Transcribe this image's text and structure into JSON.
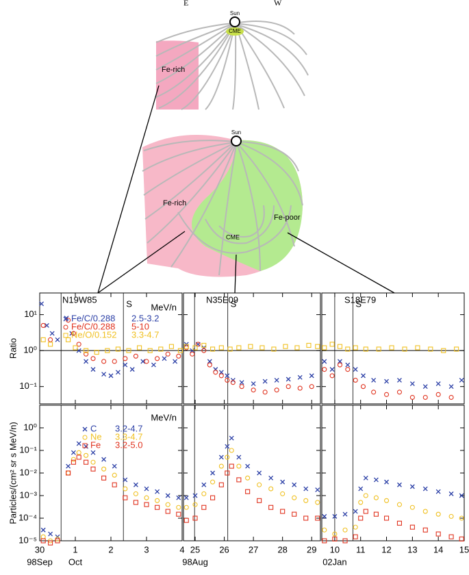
{
  "diagram": {
    "labels": {
      "e": "E",
      "w": "W",
      "sun_top": "Sun",
      "cme_top": "CME",
      "ferich_top": "Fe-rich",
      "sun_bottom": "Sun",
      "ferich_bottom": "Fe-rich",
      "fepoor_bottom": "Fe-poor",
      "cme_bottom": "CME"
    }
  },
  "chart_data": [
    {
      "type": "scatter",
      "log_y": true,
      "ylim": [
        0.033,
        40
      ],
      "xlim": [
        0,
        4
      ],
      "yticks": [
        {
          "value": 0.1,
          "label": "10⁻¹"
        },
        {
          "value": 1,
          "label": "10⁰"
        },
        {
          "value": 10,
          "label": "10¹"
        }
      ],
      "show_ytick_labels": true,
      "xticks": [
        0,
        1,
        2,
        3,
        4
      ],
      "show_xtick_labels": false,
      "ylabel": "Ratio",
      "annotation": "N19W85",
      "hline": 1,
      "vlines": [
        {
          "value": 0.6
        },
        {
          "value": 2.35,
          "label": "S"
        }
      ],
      "legend_title": "MeV/n",
      "series": [
        {
          "name": "Fe/C/0.288",
          "energy": "2.5-3.2",
          "color": "#2b3fa6",
          "marker": "x",
          "x": [
            0.05,
            0.2,
            0.35,
            0.5,
            0.75,
            0.9,
            1.1,
            1.3,
            1.5,
            1.8,
            2.0,
            2.2,
            2.4,
            2.6,
            2.9,
            3.2,
            3.5,
            3.8
          ],
          "values": [
            20,
            5,
            3,
            2,
            8,
            3,
            1,
            0.5,
            0.3,
            0.22,
            0.2,
            0.25,
            0.4,
            0.3,
            0.5,
            0.4,
            0.6,
            0.5
          ]
        },
        {
          "name": "Fe/C/0.288",
          "energy": "5-10",
          "color": "#e0321e",
          "marker": "o",
          "x": [
            0.1,
            0.3,
            0.8,
            0.95,
            1.1,
            1.3,
            1.5,
            1.8,
            2.1,
            2.4,
            2.7,
            3.0,
            3.3,
            3.6,
            3.9
          ],
          "values": [
            5,
            2,
            7,
            3,
            1.5,
            0.8,
            0.6,
            0.5,
            0.5,
            0.6,
            0.7,
            0.5,
            0.6,
            0.8,
            0.7
          ]
        },
        {
          "name": "Ne/O/0.152",
          "energy": "3.3-4.7",
          "color": "#f0c020",
          "marker": "s",
          "x": [
            0.1,
            0.3,
            0.8,
            1.0,
            1.3,
            1.6,
            1.9,
            2.2,
            2.5,
            2.8,
            3.1,
            3.4,
            3.7,
            3.95
          ],
          "values": [
            2,
            1.5,
            2,
            1.2,
            1.0,
            0.9,
            1.0,
            1.1,
            1.0,
            1.2,
            1.0,
            1.1,
            1.3,
            1.0
          ]
        }
      ]
    },
    {
      "type": "scatter",
      "log_y": true,
      "ylim": [
        0.033,
        40
      ],
      "xlim": [
        24.6,
        29.3
      ],
      "yticks": [
        0.1,
        1,
        10
      ],
      "show_ytick_labels": false,
      "xticks": [
        25,
        26,
        27,
        28,
        29
      ],
      "show_xtick_labels": false,
      "annotation": "N35E09",
      "hline": 1,
      "vlines": [
        {
          "value": 24.98
        },
        {
          "value": 26.12,
          "label": "S"
        }
      ],
      "series": [
        {
          "color": "#2b3fa6",
          "marker": "x",
          "x": [
            24.7,
            24.9,
            25.1,
            25.3,
            25.5,
            25.7,
            25.9,
            26.1,
            26.3,
            26.6,
            27.0,
            27.4,
            27.8,
            28.2,
            28.6,
            29.0
          ],
          "values": [
            1.5,
            1.0,
            1.5,
            1.2,
            0.5,
            0.3,
            0.25,
            0.2,
            0.15,
            0.13,
            0.12,
            0.14,
            0.15,
            0.16,
            0.18,
            0.2
          ]
        },
        {
          "color": "#e0321e",
          "marker": "o",
          "x": [
            24.7,
            24.9,
            25.1,
            25.3,
            25.5,
            25.7,
            25.9,
            26.1,
            26.3,
            26.6,
            27.0,
            27.4,
            27.8,
            28.2,
            28.6,
            29.0
          ],
          "values": [
            1.2,
            0.8,
            1.5,
            1.0,
            0.4,
            0.25,
            0.2,
            0.15,
            0.13,
            0.1,
            0.08,
            0.07,
            0.08,
            0.1,
            0.09,
            0.1
          ]
        },
        {
          "color": "#f0c020",
          "marker": "s",
          "x": [
            24.7,
            25.0,
            25.3,
            25.6,
            25.9,
            26.2,
            26.5,
            26.9,
            27.3,
            27.7,
            28.1,
            28.5,
            28.9,
            29.2
          ],
          "values": [
            1.3,
            1.2,
            1.4,
            1.1,
            1.2,
            1.1,
            1.2,
            1.3,
            1.2,
            1.1,
            1.3,
            1.2,
            1.4,
            1.3
          ]
        }
      ]
    },
    {
      "type": "scatter",
      "log_y": true,
      "ylim": [
        0.033,
        40
      ],
      "xlim": [
        9.5,
        15
      ],
      "yticks": [
        0.1,
        1,
        10
      ],
      "show_ytick_labels": false,
      "xticks": [
        10,
        11,
        12,
        13,
        14,
        15
      ],
      "show_xtick_labels": false,
      "annotation": "S18E79",
      "hline": 1,
      "vlines": [
        {
          "value": 10.0
        },
        {
          "value": 10.7,
          "label": "S"
        }
      ],
      "series": [
        {
          "color": "#2b3fa6",
          "marker": "x",
          "x": [
            9.6,
            9.9,
            10.2,
            10.5,
            10.8,
            11.1,
            11.5,
            12.0,
            12.5,
            13.0,
            13.5,
            14.0,
            14.5,
            14.9
          ],
          "values": [
            0.5,
            0.3,
            0.5,
            0.4,
            0.3,
            0.2,
            0.15,
            0.14,
            0.15,
            0.12,
            0.1,
            0.12,
            0.1,
            0.15
          ]
        },
        {
          "color": "#e0321e",
          "marker": "o",
          "x": [
            9.6,
            9.9,
            10.2,
            10.5,
            10.8,
            11.1,
            11.5,
            12.0,
            12.5,
            13.0,
            13.5,
            14.0,
            14.5
          ],
          "values": [
            0.3,
            0.2,
            0.4,
            0.3,
            0.15,
            0.1,
            0.07,
            0.06,
            0.07,
            0.05,
            0.05,
            0.06,
            0.05
          ]
        },
        {
          "color": "#f0c020",
          "marker": "s",
          "x": [
            9.6,
            9.9,
            10.2,
            10.5,
            10.8,
            11.2,
            11.7,
            12.2,
            12.7,
            13.2,
            13.7,
            14.2,
            14.7
          ],
          "values": [
            1.2,
            1.5,
            1.3,
            1.1,
            1.2,
            1.1,
            1.1,
            1.2,
            1.1,
            1.2,
            1.1,
            1.0,
            1.1
          ]
        }
      ]
    },
    {
      "type": "scatter",
      "log_y": true,
      "ylim": [
        1e-05,
        10
      ],
      "xlim": [
        0,
        4
      ],
      "yticks": [
        {
          "value": 1e-05,
          "label": "10⁻⁵"
        },
        {
          "value": 0.0001,
          "label": "10⁻⁴"
        },
        {
          "value": 0.001,
          "label": "10⁻³"
        },
        {
          "value": 0.01,
          "label": "10⁻²"
        },
        {
          "value": 0.1,
          "label": "10⁻¹"
        },
        {
          "value": 1,
          "label": "10⁰"
        }
      ],
      "show_ytick_labels": true,
      "xticks": [
        {
          "value": 0,
          "label": "30"
        },
        1,
        2,
        3,
        4
      ],
      "show_xtick_labels": true,
      "date_labels": [
        {
          "value": 0,
          "label": "98Sep"
        },
        {
          "value": 1,
          "label": "Oct"
        }
      ],
      "ylabel": "Particles/(cm² sr s MeV/n)",
      "vlines": [
        {
          "value": 0.6
        },
        {
          "value": 2.35
        }
      ],
      "legend_title": "MeV/n",
      "series": [
        {
          "name": "C",
          "energy": "3.2-4.7",
          "color": "#2b3fa6",
          "marker": "x",
          "x": [
            0.1,
            0.3,
            0.5,
            0.8,
            0.95,
            1.1,
            1.3,
            1.5,
            1.8,
            2.1,
            2.4,
            2.7,
            3.0,
            3.3,
            3.6,
            3.9
          ],
          "values": [
            3e-05,
            2e-05,
            1.5e-05,
            0.02,
            0.08,
            0.2,
            0.15,
            0.08,
            0.04,
            0.02,
            0.005,
            0.003,
            0.002,
            0.0015,
            0.001,
            0.0008
          ]
        },
        {
          "name": "Ne",
          "energy": "3.3-4.7",
          "color": "#f0c020",
          "marker": "o",
          "x": [
            0.1,
            0.3,
            0.5,
            0.8,
            0.95,
            1.1,
            1.3,
            1.5,
            1.8,
            2.1,
            2.4,
            2.7,
            3.0,
            3.3,
            3.6,
            3.9
          ],
          "values": [
            1.5e-05,
            1e-05,
            1.2e-05,
            0.01,
            0.04,
            0.08,
            0.06,
            0.03,
            0.015,
            0.008,
            0.002,
            0.0012,
            0.0008,
            0.0006,
            0.0004,
            0.0003
          ]
        },
        {
          "name": "Fe",
          "energy": "3.2-5.0",
          "color": "#e0321e",
          "marker": "s",
          "x": [
            0.1,
            0.3,
            0.5,
            0.8,
            0.95,
            1.1,
            1.3,
            1.5,
            1.8,
            2.1,
            2.4,
            2.7,
            3.0,
            3.3,
            3.6,
            3.9
          ],
          "values": [
            1e-05,
            8e-06,
            1e-05,
            0.01,
            0.03,
            0.05,
            0.03,
            0.015,
            0.006,
            0.003,
            0.0008,
            0.0005,
            0.0004,
            0.0003,
            0.0002,
            0.00015
          ]
        }
      ]
    },
    {
      "type": "scatter",
      "log_y": true,
      "ylim": [
        1e-05,
        10
      ],
      "xlim": [
        24.6,
        29.3
      ],
      "yticks": [
        1e-05,
        0.0001,
        0.001,
        0.01,
        0.1,
        1
      ],
      "show_ytick_labels": false,
      "xticks": [
        25,
        26,
        27,
        28,
        29
      ],
      "show_xtick_labels": true,
      "date_labels": [
        {
          "value": 25,
          "label": "98Aug"
        }
      ],
      "vlines": [
        {
          "value": 24.98
        },
        {
          "value": 26.12
        }
      ],
      "series": [
        {
          "color": "#2b3fa6",
          "marker": "x",
          "x": [
            24.7,
            25.0,
            25.3,
            25.6,
            25.9,
            26.1,
            26.25,
            26.5,
            26.8,
            27.2,
            27.6,
            28.0,
            28.4,
            28.8,
            29.2
          ],
          "values": [
            0.0008,
            0.001,
            0.003,
            0.01,
            0.05,
            0.15,
            0.35,
            0.05,
            0.02,
            0.01,
            0.006,
            0.004,
            0.003,
            0.002,
            0.0018
          ]
        },
        {
          "color": "#f0c020",
          "marker": "o",
          "x": [
            24.7,
            25.0,
            25.3,
            25.6,
            25.9,
            26.1,
            26.25,
            26.5,
            26.8,
            27.2,
            27.6,
            28.0,
            28.4,
            28.8,
            29.2
          ],
          "values": [
            0.0003,
            0.0004,
            0.0012,
            0.004,
            0.02,
            0.05,
            0.1,
            0.02,
            0.006,
            0.003,
            0.002,
            0.0012,
            0.0008,
            0.0006,
            0.0005
          ]
        },
        {
          "color": "#e0321e",
          "marker": "s",
          "x": [
            24.7,
            25.0,
            25.3,
            25.6,
            25.9,
            26.1,
            26.25,
            26.5,
            26.8,
            27.2,
            27.6,
            28.0,
            28.4,
            28.8,
            29.2
          ],
          "values": [
            8e-05,
            0.0001,
            0.0003,
            0.0008,
            0.003,
            0.01,
            0.02,
            0.005,
            0.0015,
            0.0006,
            0.0003,
            0.0002,
            0.00015,
            0.0001,
            0.0001
          ]
        }
      ]
    },
    {
      "type": "scatter",
      "log_y": true,
      "ylim": [
        1e-05,
        10
      ],
      "xlim": [
        9.5,
        15
      ],
      "yticks": [
        1e-05,
        0.0001,
        0.001,
        0.01,
        0.1,
        1
      ],
      "show_ytick_labels": false,
      "xticks": [
        10,
        11,
        12,
        13,
        14,
        15
      ],
      "show_xtick_labels": true,
      "date_labels": [
        {
          "value": 10,
          "label": "02Jan"
        }
      ],
      "vlines": [
        {
          "value": 10.0
        },
        {
          "value": 10.7
        }
      ],
      "series": [
        {
          "color": "#2b3fa6",
          "marker": "x",
          "x": [
            9.6,
            10.0,
            10.4,
            10.8,
            11.0,
            11.2,
            11.6,
            12.0,
            12.5,
            13.0,
            13.5,
            14.0,
            14.5,
            14.9
          ],
          "values": [
            0.00012,
            0.00012,
            0.00015,
            0.0002,
            0.002,
            0.006,
            0.005,
            0.004,
            0.003,
            0.0025,
            0.002,
            0.0015,
            0.0012,
            0.001
          ]
        },
        {
          "color": "#f0c020",
          "marker": "o",
          "x": [
            9.6,
            10.0,
            10.4,
            10.8,
            11.0,
            11.2,
            11.6,
            12.0,
            12.5,
            13.0,
            13.5,
            14.0,
            14.5,
            14.9
          ],
          "values": [
            3e-05,
            2e-05,
            3e-05,
            4e-05,
            0.0005,
            0.001,
            0.0008,
            0.0006,
            0.0004,
            0.0003,
            0.0002,
            0.00015,
            0.00012,
            0.0001
          ]
        },
        {
          "color": "#e0321e",
          "marker": "s",
          "x": [
            9.6,
            10.0,
            10.4,
            10.8,
            11.0,
            11.2,
            11.6,
            12.0,
            12.5,
            13.0,
            13.5,
            14.0,
            14.5,
            14.9
          ],
          "values": [
            1e-05,
            1.2e-05,
            1e-05,
            1.5e-05,
            0.0001,
            0.0002,
            0.00015,
            0.0001,
            6e-05,
            4e-05,
            3e-05,
            2e-05,
            1.5e-05,
            1.2e-05
          ]
        }
      ]
    }
  ]
}
